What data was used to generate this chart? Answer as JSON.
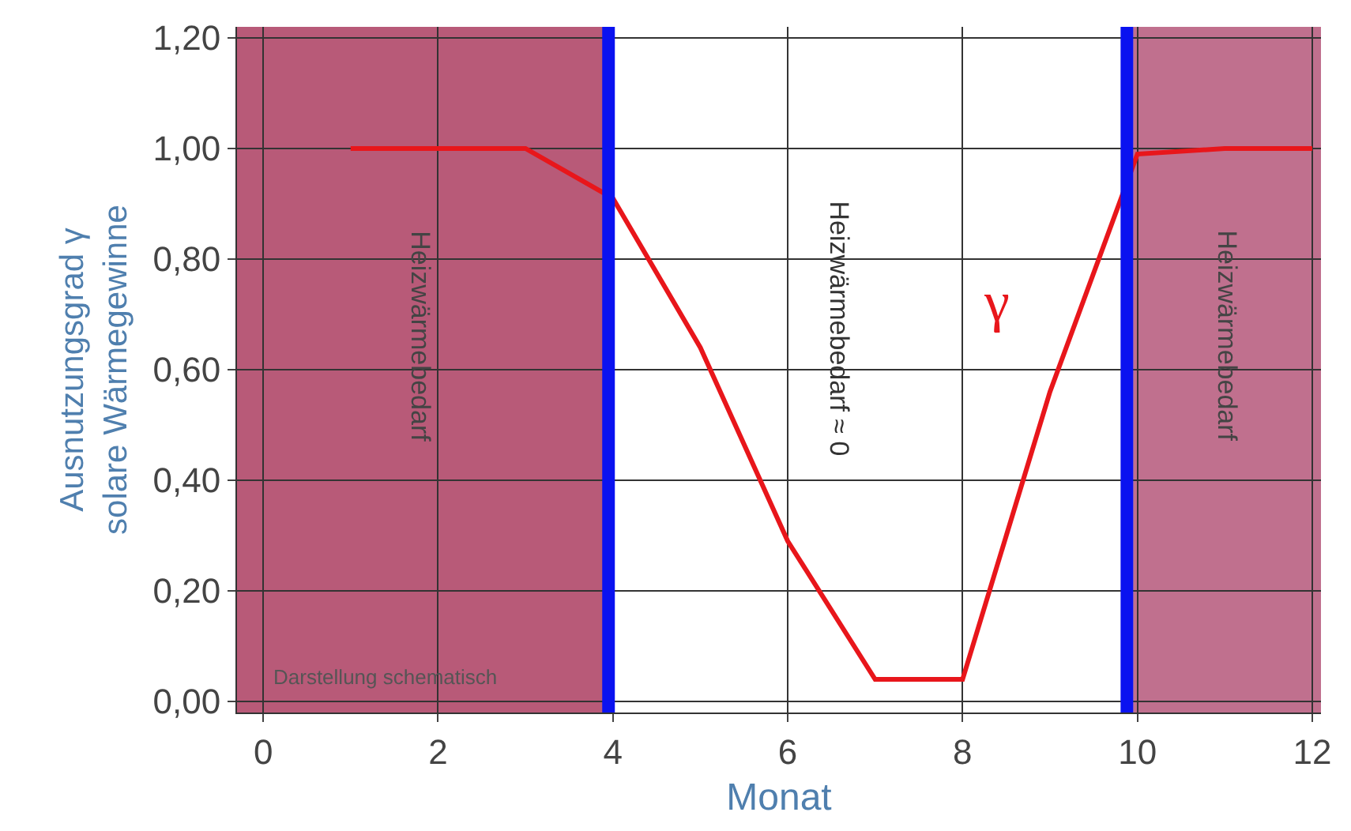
{
  "chart_data": {
    "type": "line",
    "xlabel": "Monat",
    "ylabel": "Ausnutzungsgrad γ\nsolare Wärmegewinne",
    "x": [
      1,
      2,
      3,
      4,
      5,
      6,
      7,
      8,
      9,
      10,
      11,
      12
    ],
    "series": [
      {
        "color": "#e8161b",
        "values": [
          1.0,
          1.0,
          1.0,
          0.91,
          0.64,
          0.29,
          0.04,
          0.04,
          0.56,
          0.99,
          1.0,
          1.0
        ]
      }
    ],
    "xlim": [
      -0.3,
      12.1
    ],
    "ylim": [
      -0.02,
      1.22
    ],
    "xticks": [
      0,
      2,
      4,
      6,
      8,
      10,
      12
    ],
    "yticks": [
      {
        "value": 0,
        "label": "0,00"
      },
      {
        "value": 0.2,
        "label": "0,20"
      },
      {
        "value": 0.4,
        "label": "0,40"
      },
      {
        "value": 0.6,
        "label": "0,60"
      },
      {
        "value": 0.8,
        "label": "0,80"
      },
      {
        "value": 1.0,
        "label": "1,00"
      },
      {
        "value": 1.2,
        "label": "1,20"
      }
    ],
    "grid": true,
    "marker": "none",
    "line_style": "solid",
    "bands": [
      {
        "axis": "x",
        "from": -0.3,
        "to": 3.9,
        "label": "Heizwärmebedarf",
        "color": "#b85a78"
      },
      {
        "axis": "x",
        "from": 9.95,
        "to": 12.1,
        "label": "Heizwärmebedarf",
        "color": "#c0708e"
      }
    ],
    "ref_lines": [
      {
        "axis": "x",
        "value": 3.95,
        "color": "#0a12f0"
      },
      {
        "axis": "x",
        "value": 9.88,
        "color": "#0a12f0"
      }
    ],
    "annotations": [
      "Heizwärmebedarf ≈ 0",
      "γ",
      "Darstellung schematisch"
    ]
  }
}
